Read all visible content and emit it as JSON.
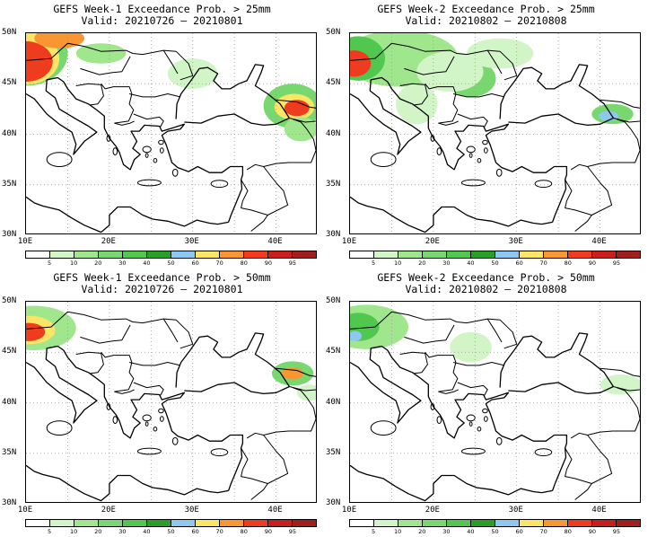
{
  "panels": [
    {
      "id": "p1",
      "title": "GEFS Week-1 Exceedance Prob. > 25mm",
      "valid": "Valid: 20210726 – 20210801"
    },
    {
      "id": "p2",
      "title": "GEFS Week-2 Exceedance Prob. > 25mm",
      "valid": "Valid: 20210802 – 20210808"
    },
    {
      "id": "p3",
      "title": "GEFS Week-1 Exceedance Prob. > 50mm",
      "valid": "Valid: 20210726 – 20210801"
    },
    {
      "id": "p4",
      "title": "GEFS Week-2 Exceedance Prob. > 50mm",
      "valid": "Valid: 20210802 – 20210808"
    }
  ],
  "axes": {
    "y_labels": [
      "50N",
      "45N",
      "40N",
      "35N",
      "30N"
    ],
    "x_labels": [
      "10E",
      "20E",
      "30E",
      "40E"
    ]
  },
  "colorbar": {
    "labels": [
      "5",
      "10",
      "20",
      "30",
      "40",
      "50",
      "60",
      "70",
      "80",
      "90",
      "95"
    ],
    "colors": [
      "#ffffff",
      "#d2f5c8",
      "#a0e68c",
      "#78d76e",
      "#50c850",
      "#28a028",
      "#8cc8f0",
      "#fae664",
      "#fa9632",
      "#f03c1e",
      "#c81e1e",
      "#a01e1e"
    ]
  }
}
